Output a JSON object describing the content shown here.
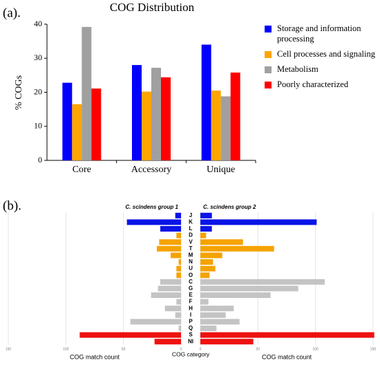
{
  "chart_data": [
    {
      "type": "bar",
      "panel_label": "(a).",
      "title": "COG Distribution",
      "y_label": "% COGs",
      "categories": [
        "Core",
        "Accessory",
        "Unique"
      ],
      "series": [
        {
          "name": "Storage and information processing",
          "color": "#0000ff",
          "values": [
            22.8,
            28,
            34
          ]
        },
        {
          "name": "Cell processes and signaling",
          "color": "#ffa500",
          "values": [
            16.5,
            20.2,
            20.5
          ]
        },
        {
          "name": "Metabolism",
          "color": "#a0a0a0",
          "values": [
            39.2,
            27.2,
            18.8
          ]
        },
        {
          "name": "Poorly characterized",
          "color": "#ff0000",
          "values": [
            21.1,
            24.4,
            25.8
          ]
        }
      ],
      "ylim": [
        0,
        40
      ],
      "yticks": [
        0,
        10,
        20,
        30,
        40
      ],
      "legend": "right"
    },
    {
      "type": "butterfly",
      "panel_label": "(b).",
      "x_label": "COG match count",
      "category_label": "COG category",
      "categories": [
        "J",
        "K",
        "L",
        "D",
        "V",
        "T",
        "M",
        "N",
        "U",
        "O",
        "C",
        "G",
        "E",
        "F",
        "H",
        "I",
        "P",
        "Q",
        "S",
        "NI"
      ],
      "colors": [
        "#0a14e6",
        "#0a14e6",
        "#0a14e6",
        "#f5a300",
        "#f5a300",
        "#f5a300",
        "#f5a300",
        "#f5a300",
        "#f5a300",
        "#f5a300",
        "#c4c4c4",
        "#c4c4c4",
        "#c4c4c4",
        "#c4c4c4",
        "#c4c4c4",
        "#c4c4c4",
        "#c4c4c4",
        "#c4c4c4",
        "#ee1111",
        "#ee1111"
      ],
      "series": [
        {
          "name": "C. scindens group 1",
          "values": [
            5,
            47,
            18,
            4,
            19,
            21,
            9,
            2,
            4,
            4,
            18,
            20,
            26,
            4,
            14,
            5,
            44,
            2,
            88,
            23
          ]
        },
        {
          "name": "C. scindens group 2",
          "values": [
            10,
            101,
            10,
            5,
            37,
            64,
            19,
            11,
            13,
            8,
            108,
            85,
            61,
            7,
            29,
            22,
            34,
            14,
            151,
            46
          ]
        }
      ],
      "xlim": [
        0,
        150
      ],
      "xticks": [
        0,
        50,
        100,
        150
      ],
      "grid": true
    }
  ]
}
